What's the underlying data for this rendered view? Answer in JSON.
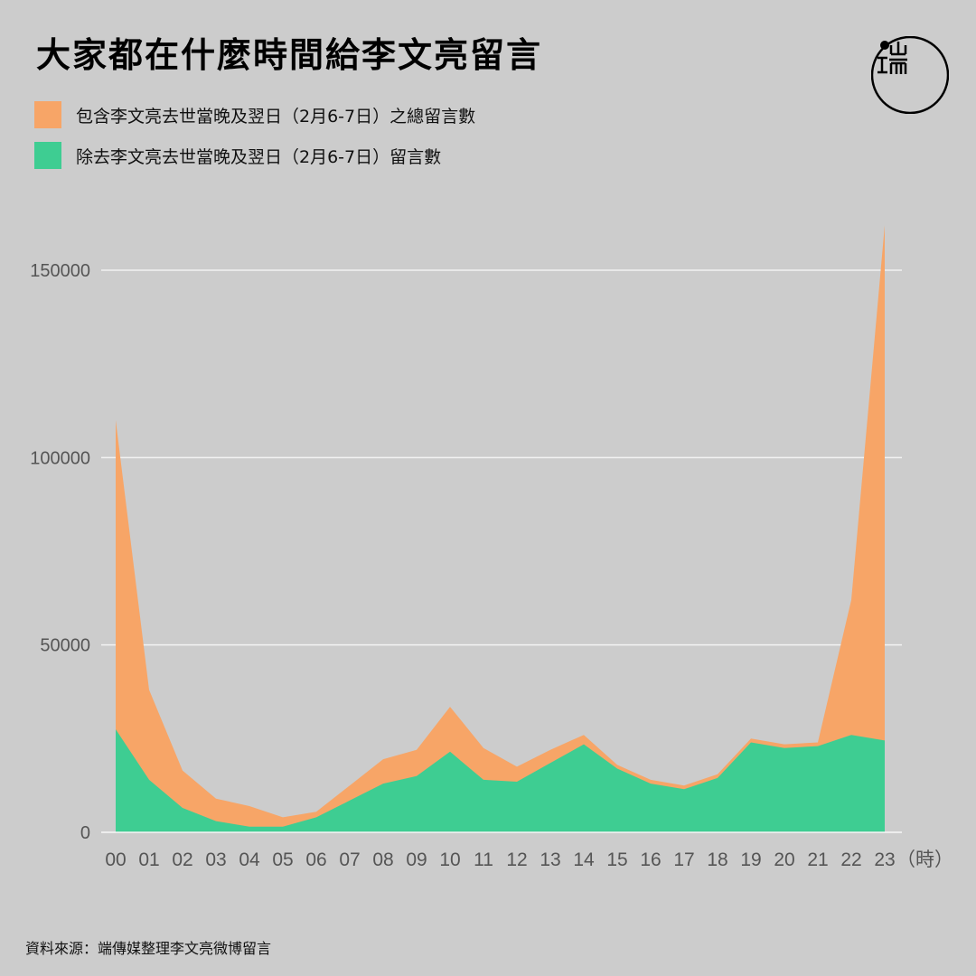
{
  "title": "大家都在什麼時間給李文亮留言",
  "logo_text": "端",
  "legend": [
    {
      "label": "包含李文亮去世當晚及翌日（2月6-7日）之總留言數",
      "color": "#f7a567"
    },
    {
      "label": "除去李文亮去世當晚及翌日（2月6-7日）留言數",
      "color": "#3ecd92"
    }
  ],
  "source": "資料來源：端傳媒整理李文亮微博留言",
  "chart_data": {
    "type": "area",
    "x": [
      "00",
      "01",
      "02",
      "03",
      "04",
      "05",
      "06",
      "07",
      "08",
      "09",
      "10",
      "11",
      "12",
      "13",
      "14",
      "15",
      "16",
      "17",
      "18",
      "19",
      "20",
      "21",
      "22",
      "23"
    ],
    "x_unit": "（時）",
    "ylim": [
      0,
      150000
    ],
    "yticks": [
      0,
      50000,
      100000,
      150000
    ],
    "series": [
      {
        "name": "包含李文亮去世當晚及翌日（2月6-7日）之總留言數",
        "color": "#f7a567",
        "values": [
          110000,
          38000,
          16500,
          9000,
          7000,
          4000,
          5500,
          12500,
          19500,
          22000,
          33500,
          22500,
          17500,
          22000,
          26000,
          18000,
          14000,
          12500,
          15500,
          25000,
          23500,
          24000,
          62000,
          162000
        ]
      },
      {
        "name": "除去李文亮去世當晚及翌日（2月6-7日）留言數",
        "color": "#3ecd92",
        "values": [
          27500,
          14000,
          6500,
          3000,
          1500,
          1500,
          4000,
          8500,
          13000,
          15000,
          21500,
          14000,
          13500,
          18500,
          23500,
          17000,
          13000,
          11500,
          14500,
          24000,
          22500,
          23000,
          26000,
          24500
        ]
      }
    ]
  }
}
